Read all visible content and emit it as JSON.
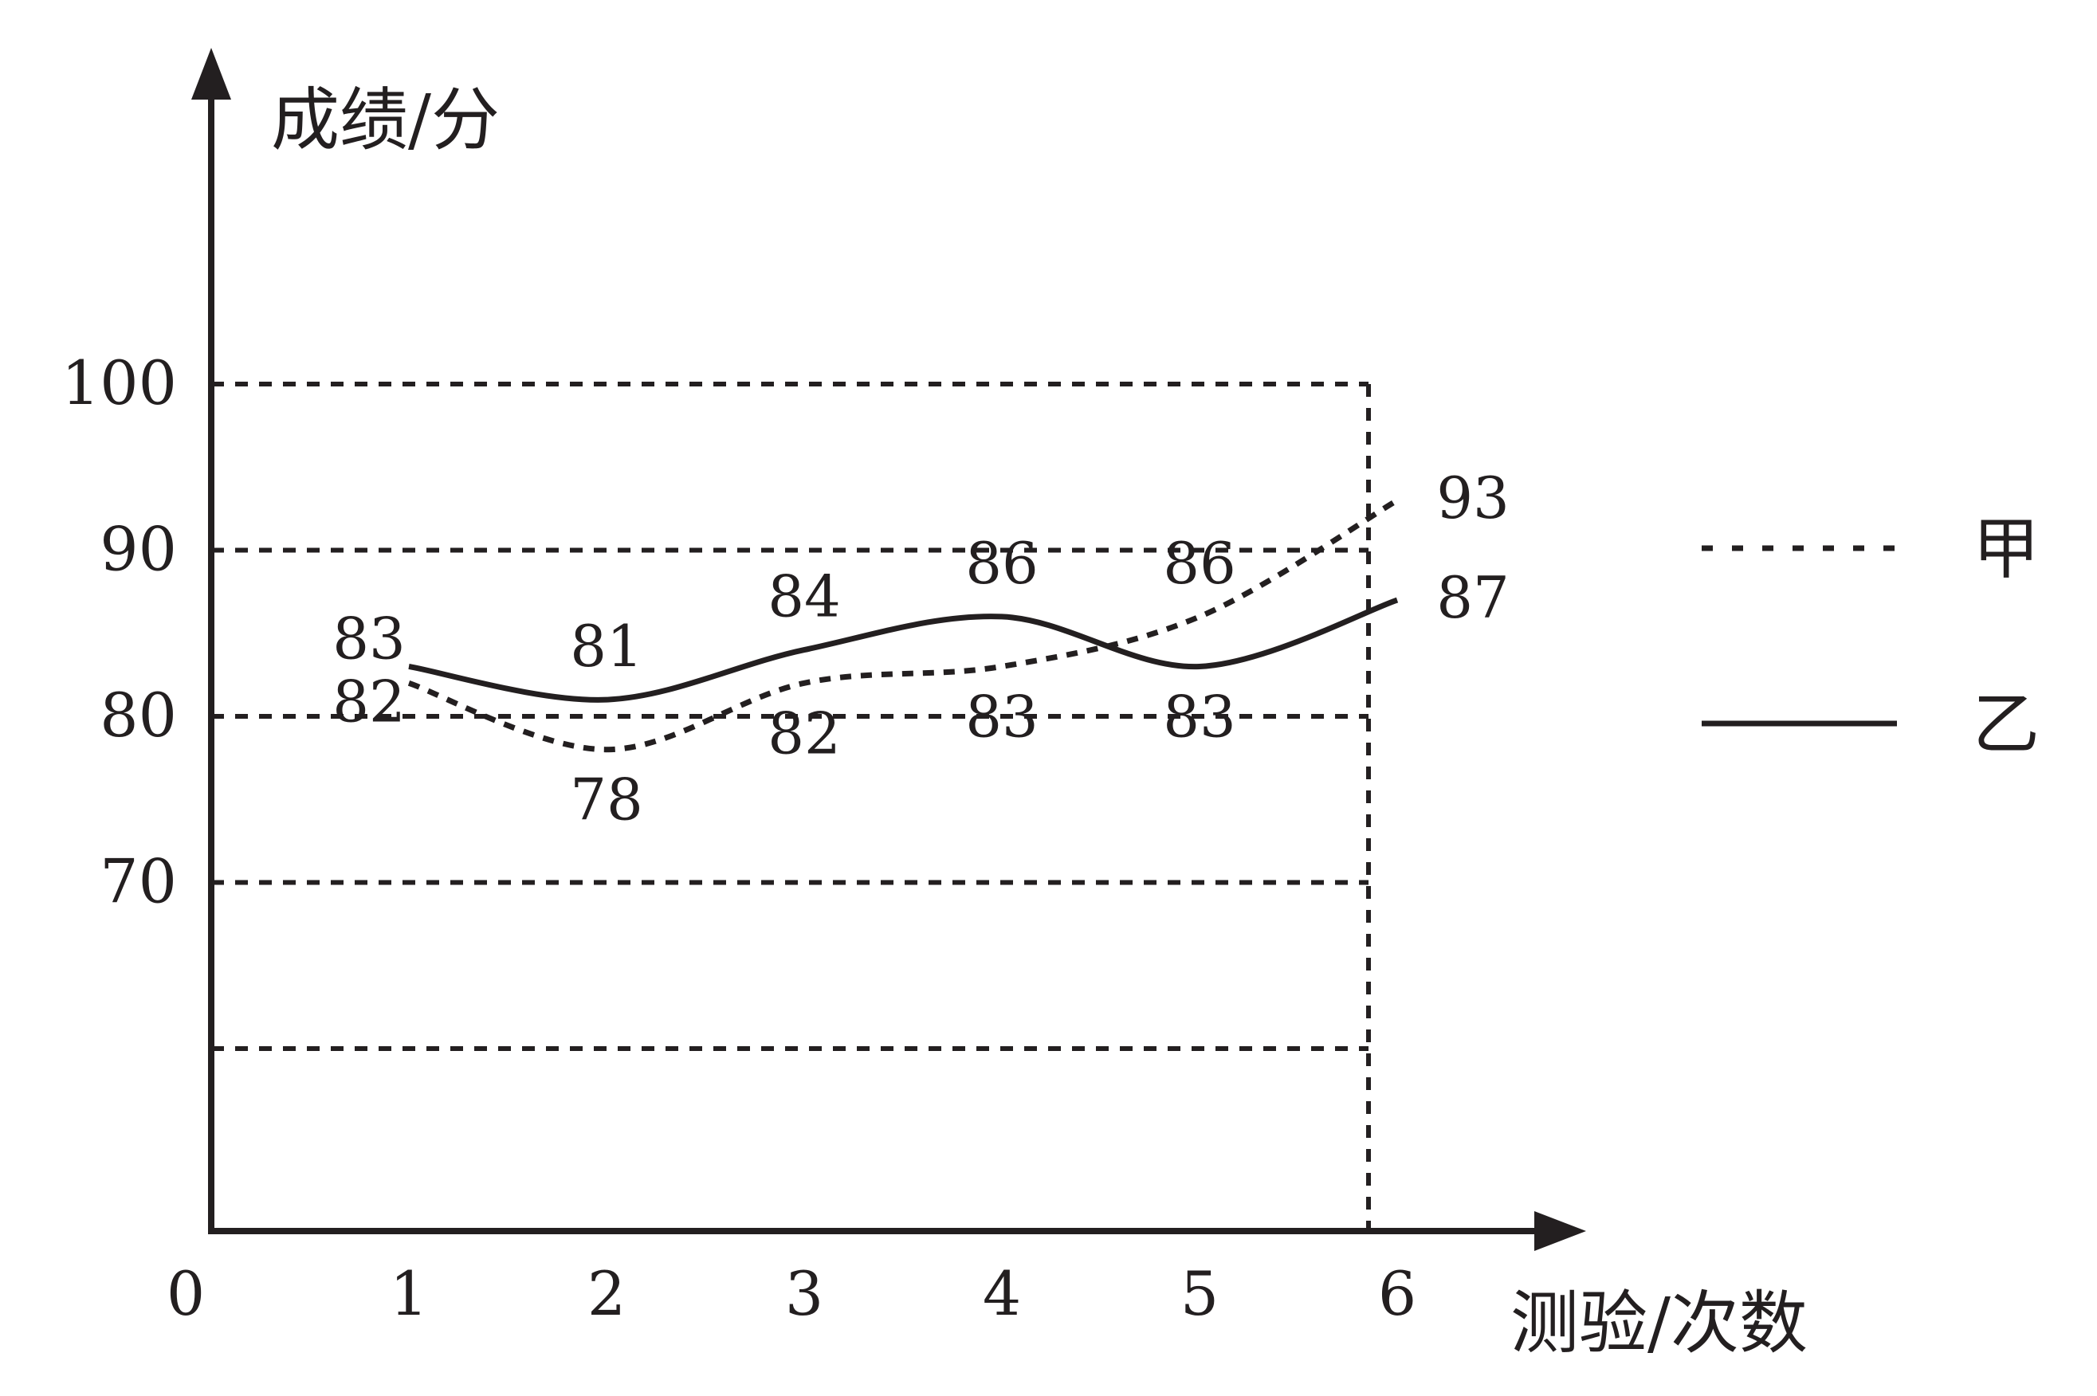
{
  "chart_data": {
    "type": "line",
    "xlabel": "测验/次数",
    "ylabel": "成绩/分",
    "origin_label": "0",
    "x": [
      1,
      2,
      3,
      4,
      5,
      6
    ],
    "x_tick_labels": [
      "1",
      "2",
      "3",
      "4",
      "5",
      "6"
    ],
    "y_tick_values": [
      70,
      80,
      90,
      100
    ],
    "y_tick_labels": [
      "70",
      "80",
      "90",
      "100"
    ],
    "gridline_values": [
      60,
      70,
      80,
      90,
      100
    ],
    "grid": true,
    "legend_position": "right",
    "series": [
      {
        "name": "甲",
        "style": "dashed",
        "values": [
          82,
          78,
          82,
          83,
          86,
          93
        ],
        "labels": [
          "82",
          "78",
          "82",
          "83",
          "86",
          "93"
        ]
      },
      {
        "name": "乙",
        "style": "solid",
        "values": [
          83,
          81,
          84,
          86,
          83,
          87
        ],
        "labels": [
          "83",
          "81",
          "84",
          "86",
          "83",
          "87"
        ]
      }
    ],
    "colors": {
      "ink": "#231f20",
      "background": "#ffffff"
    }
  }
}
